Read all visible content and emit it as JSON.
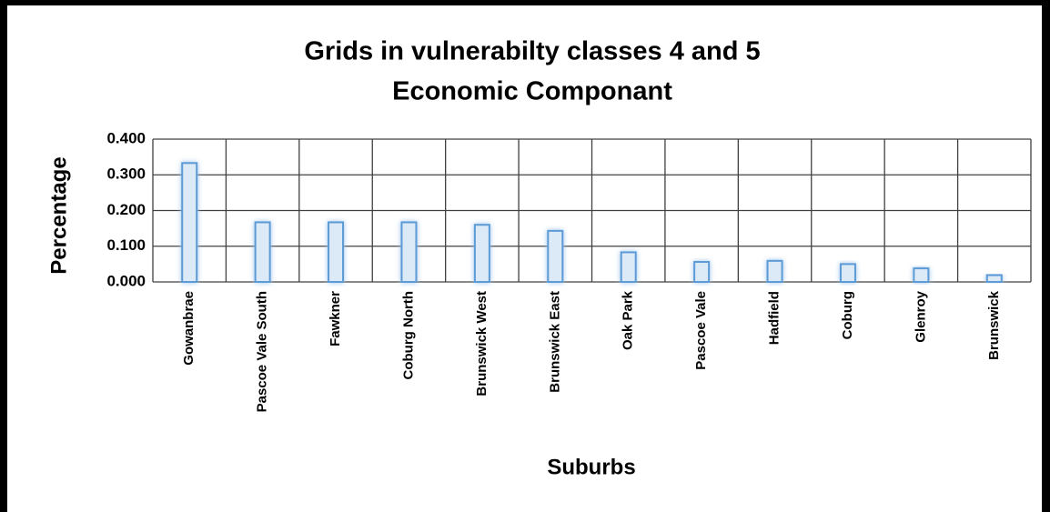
{
  "chart_data": {
    "type": "bar",
    "title": "Grids in vulnerabilty classes 4 and 5",
    "subtitle": "Economic Componant",
    "x_label": "Suburbs",
    "y_label": "Percentage",
    "categories": [
      "Gowanbrae",
      "Pascoe Vale South",
      "Fawkner",
      "Coburg North",
      "Brunswick West",
      "Brunswick East",
      "Oak Park",
      "Pascoe Vale",
      "Hadfield",
      "Coburg",
      "Glenroy",
      "Brunswick"
    ],
    "values": [
      0.333,
      0.167,
      0.167,
      0.167,
      0.16,
      0.143,
      0.083,
      0.056,
      0.059,
      0.05,
      0.038,
      0.019
    ],
    "color": "#5b9bd5",
    "ylim": [
      0,
      0.4
    ],
    "yticks": [
      {
        "value": 0,
        "label": "0.000"
      },
      {
        "value": 0.1,
        "label": "0.100"
      },
      {
        "value": 0.2,
        "label": "0.200"
      },
      {
        "value": 0.3,
        "label": "0.300"
      },
      {
        "value": 0.4,
        "label": "0.400"
      }
    ],
    "grid": true
  }
}
